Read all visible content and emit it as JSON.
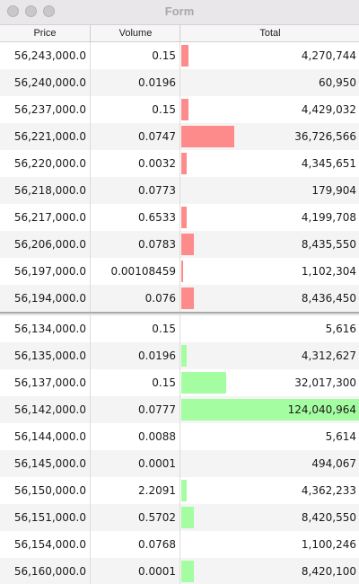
{
  "window": {
    "title": "Form"
  },
  "columns": {
    "price": "Price",
    "volume": "Volume",
    "total": "Total"
  },
  "colors": {
    "ask_bar": "#fd8b8b",
    "bid_bar": "#a5fda1"
  },
  "asks": [
    {
      "price": "56,243,000.0",
      "volume": "0.15",
      "total": "4,270,744",
      "fill": 0.04
    },
    {
      "price": "56,240,000.0",
      "volume": "0.0196",
      "total": "60,950",
      "fill": 0.0
    },
    {
      "price": "56,237,000.0",
      "volume": "0.15",
      "total": "4,429,032",
      "fill": 0.04
    },
    {
      "price": "56,221,000.0",
      "volume": "0.0747",
      "total": "36,726,566",
      "fill": 0.3
    },
    {
      "price": "56,220,000.0",
      "volume": "0.0032",
      "total": "4,345,651",
      "fill": 0.03
    },
    {
      "price": "56,218,000.0",
      "volume": "0.0773",
      "total": "179,904",
      "fill": 0.0
    },
    {
      "price": "56,217,000.0",
      "volume": "0.6533",
      "total": "4,199,708",
      "fill": 0.03
    },
    {
      "price": "56,206,000.0",
      "volume": "0.0783",
      "total": "8,435,550",
      "fill": 0.07
    },
    {
      "price": "56,197,000.0",
      "volume": "0.00108459",
      "total": "1,102,304",
      "fill": 0.005
    },
    {
      "price": "56,194,000.0",
      "volume": "0.076",
      "total": "8,436,450",
      "fill": 0.07
    }
  ],
  "bids": [
    {
      "price": "56,134,000.0",
      "volume": "0.15",
      "total": "5,616",
      "fill": 0.0
    },
    {
      "price": "56,135,000.0",
      "volume": "0.0196",
      "total": "4,312,627",
      "fill": 0.03
    },
    {
      "price": "56,137,000.0",
      "volume": "0.15",
      "total": "32,017,300",
      "fill": 0.25
    },
    {
      "price": "56,142,000.0",
      "volume": "0.0777",
      "total": "124,040,964",
      "fill": 1.0
    },
    {
      "price": "56,144,000.0",
      "volume": "0.0088",
      "total": "5,614",
      "fill": 0.0
    },
    {
      "price": "56,145,000.0",
      "volume": "0.0001",
      "total": "494,067",
      "fill": 0.0
    },
    {
      "price": "56,150,000.0",
      "volume": "2.2091",
      "total": "4,362,233",
      "fill": 0.03
    },
    {
      "price": "56,151,000.0",
      "volume": "0.5702",
      "total": "8,420,550",
      "fill": 0.07
    },
    {
      "price": "56,154,000.0",
      "volume": "0.0768",
      "total": "1,100,246",
      "fill": 0.0
    },
    {
      "price": "56,160,000.0",
      "volume": "0.0001",
      "total": "8,420,100",
      "fill": 0.07
    }
  ]
}
